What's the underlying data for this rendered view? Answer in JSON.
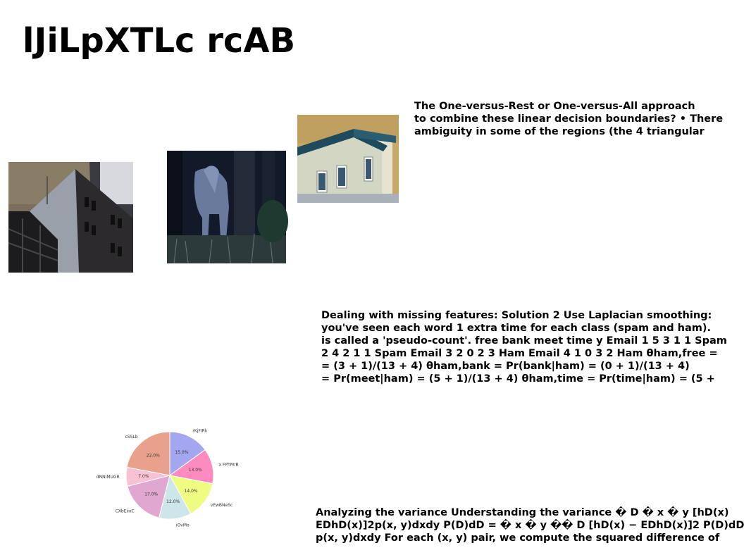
{
  "title": "lJiLpXTLc rcAB",
  "paragraphs": {
    "p1": [
      "The One-versus-Rest or One-versus-All approach",
      "to combine these linear decision boundaries? • There",
      "ambiguity in some of the regions (the 4 triangular"
    ],
    "p2": [
      "Dealing with missing features: Solution 2 Use Laplacian smoothing:",
      "you've seen each word 1 extra time for each class (spam and ham).",
      "is called a 'pseudo-count'. free bank meet time y Email 1 5 3 1 1 Spam",
      "2 4 2 1 1 Spam Email 3 2 0 2 3 Ham Email 4 1 0 3 2 Ham θham,free =",
      "= (3 + 1)/(13 + 4) θham,bank = Pr(bank|ham) = (0 + 1)/(13 + 4)",
      "= Pr(meet|ham) = (5 + 1)/(13 + 4) θham,time = Pr(time|ham) = (5 +"
    ],
    "p3": [
      "Analyzing the variance Understanding the variance � D � x � y [hD(x)",
      "EDhD(x)]2p(x, y)dxdy P(D)dD = � x � y �� D [hD(x) − EDhD(x)]2 P(D)dD",
      "p(x, y)dxdy For each (x, y) pair, we compute the squared difference of"
    ]
  },
  "images": [
    {
      "icon": "building-photo"
    },
    {
      "icon": "horse-in-forest-photo"
    },
    {
      "icon": "house-corner-photo"
    }
  ],
  "chart_data": {
    "type": "pie",
    "title": "",
    "slices": [
      {
        "label": "rKjFIRk",
        "value": 15.0,
        "pct_label": "15.0%",
        "color": "#a3a7f0"
      },
      {
        "label": "x FPhMrB",
        "value": 13.0,
        "pct_label": "13.0%",
        "color": "#fc8cc0"
      },
      {
        "label": "vEwBNeSc",
        "value": 14.0,
        "pct_label": "14.0%",
        "color": "#effc82"
      },
      {
        "label": "iOvMo",
        "value": 12.0,
        "pct_label": "12.0%",
        "color": "#cce6ec"
      },
      {
        "label": "CXbEiixC",
        "value": 17.0,
        "pct_label": "17.0%",
        "color": "#e0a8d0"
      },
      {
        "label": "dNNIMUGR",
        "value": 7.0,
        "pct_label": "7.0%",
        "color": "#f8c2d4"
      },
      {
        "label": "cSSLb",
        "value": 22.0,
        "pct_label": "22.0%",
        "color": "#e8a28c"
      }
    ],
    "start": "top",
    "direction": "clockwise"
  }
}
